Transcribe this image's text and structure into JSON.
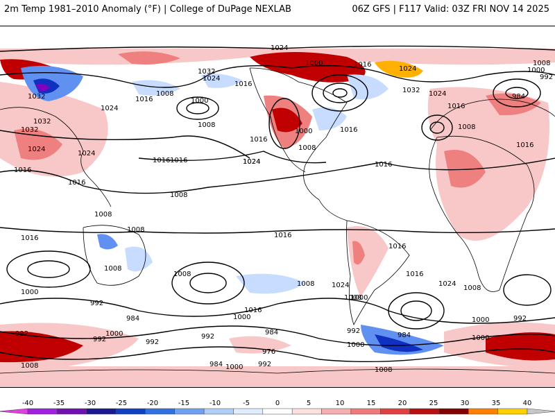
{
  "header": {
    "left_title": "2m Temp 1981–2010 Anomaly (°F) | College of DuPage NEXLAB",
    "right_title": "06Z GFS | F117 Valid: 03Z FRI NOV 14 2025"
  },
  "map": {
    "projection": "cylindrical-global",
    "colors": {
      "ocean_land": "#ffffff",
      "warm_light": "#f8c8c8",
      "warm_mid": "#ee8080",
      "warm_dark": "#c00000",
      "warm_extreme": "#ffb000",
      "cold_light": "#c8dcff",
      "cold_mid": "#6090f0",
      "cold_dark": "#1030c0",
      "cold_extreme": "#8000c0",
      "isobar": "#000000",
      "coast": "#000000"
    },
    "isobar_labels": [
      {
        "value": "1024"
      },
      {
        "value": "1000"
      },
      {
        "value": "1016"
      },
      {
        "value": "1024"
      },
      {
        "value": "1008"
      },
      {
        "value": "1000"
      },
      {
        "value": "992"
      },
      {
        "value": "1032"
      },
      {
        "value": "1024"
      },
      {
        "value": "1016"
      },
      {
        "value": "1008"
      },
      {
        "value": "1016"
      },
      {
        "value": "1000"
      },
      {
        "value": "1008"
      },
      {
        "value": "1016"
      },
      {
        "value": "1024"
      },
      {
        "value": "1032"
      },
      {
        "value": "1032"
      },
      {
        "value": "1024"
      },
      {
        "value": "1016"
      },
      {
        "value": "1008"
      },
      {
        "value": "984"
      },
      {
        "value": "1008"
      },
      {
        "value": "1016"
      },
      {
        "value": "1032"
      },
      {
        "value": "1024"
      },
      {
        "value": "1032"
      },
      {
        "value": "1024"
      },
      {
        "value": "1024"
      },
      {
        "value": "1016"
      },
      {
        "value": "1016"
      },
      {
        "value": "1016"
      },
      {
        "value": "1024"
      },
      {
        "value": "1016"
      },
      {
        "value": "1008"
      },
      {
        "value": "1000"
      },
      {
        "value": "1008"
      },
      {
        "value": "1016"
      },
      {
        "value": "1016"
      },
      {
        "value": "1008"
      },
      {
        "value": "1008"
      },
      {
        "value": "1008"
      },
      {
        "value": "1016"
      },
      {
        "value": "1016"
      },
      {
        "value": "1016"
      },
      {
        "value": "1008"
      },
      {
        "value": "1016"
      },
      {
        "value": "1024"
      },
      {
        "value": "1008"
      },
      {
        "value": "1024"
      },
      {
        "value": "1008"
      },
      {
        "value": "1000"
      },
      {
        "value": "992"
      },
      {
        "value": "984"
      },
      {
        "value": "1000"
      },
      {
        "value": "1016"
      },
      {
        "value": "1000"
      },
      {
        "value": "992"
      },
      {
        "value": "1000"
      },
      {
        "value": "992"
      },
      {
        "value": "984"
      },
      {
        "value": "992"
      },
      {
        "value": "976"
      },
      {
        "value": "984"
      },
      {
        "value": "1000"
      },
      {
        "value": "992"
      },
      {
        "value": "1000"
      },
      {
        "value": "992"
      },
      {
        "value": "984"
      },
      {
        "value": "1000"
      },
      {
        "value": "1000"
      },
      {
        "value": "992"
      },
      {
        "value": "992"
      },
      {
        "value": "1008"
      },
      {
        "value": "1008"
      }
    ]
  },
  "colorbar": {
    "ticks": [
      "-40",
      "-35",
      "-30",
      "-25",
      "-20",
      "-15",
      "-10",
      "-5",
      "0",
      "5",
      "10",
      "15",
      "20",
      "25",
      "30",
      "35",
      "40"
    ],
    "colors": [
      "#e040e0",
      "#a020e0",
      "#7010b0",
      "#1a1a90",
      "#1040c0",
      "#3070e0",
      "#70a0f0",
      "#b0cff8",
      "#e0ecff",
      "#ffffff",
      "#fbe0e0",
      "#f4b0b0",
      "#ee7a7a",
      "#e04040",
      "#b81010",
      "#800000",
      "#ff8000",
      "#ffd000",
      "#c8c8c8"
    ]
  }
}
